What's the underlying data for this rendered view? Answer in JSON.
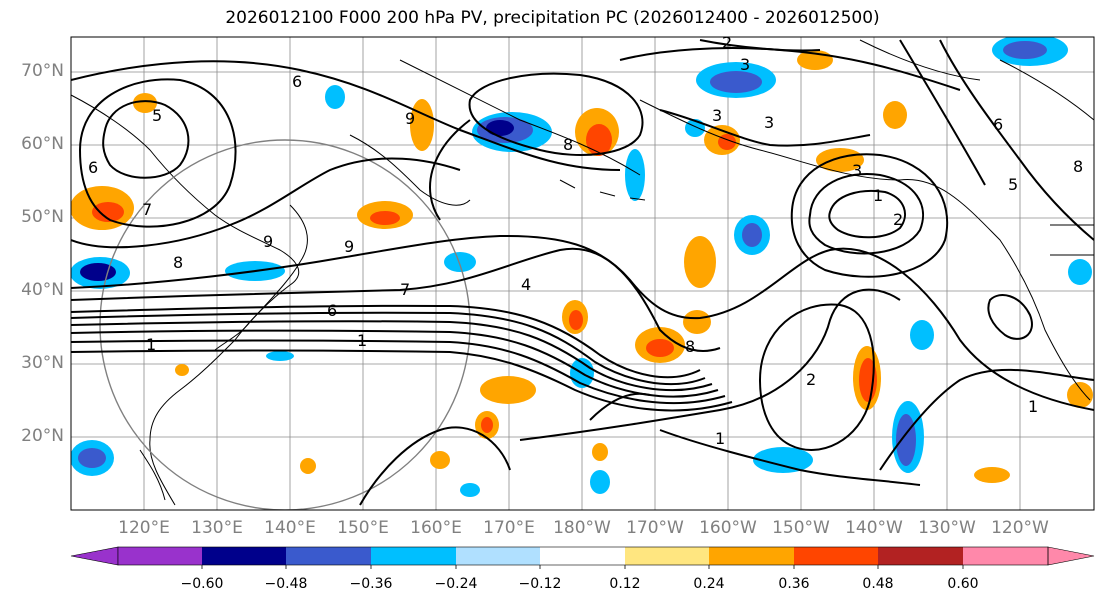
{
  "title": "2026012100 F000 200 hPa PV, precipitation PC (2026012400 - 2026012500)",
  "latitude_labels": [
    "70°N",
    "60°N",
    "50°N",
    "40°N",
    "30°N",
    "20°N"
  ],
  "longitude_labels": [
    "120°E",
    "130°E",
    "140°E",
    "150°E",
    "160°E",
    "170°E",
    "180°W",
    "170°W",
    "160°W",
    "150°W",
    "140°W",
    "130°W",
    "120°W"
  ],
  "contour_labels": [
    "2",
    "3",
    "3",
    "3",
    "3",
    "6",
    "6",
    "6",
    "6",
    "5",
    "5",
    "7",
    "7",
    "8",
    "8",
    "8",
    "9",
    "9",
    "9",
    "1",
    "1",
    "1",
    "1",
    "2",
    "2",
    "4",
    "8",
    "1"
  ],
  "colorbar": {
    "ticks": [
      "−0.60",
      "−0.48",
      "−0.36",
      "−0.24",
      "−0.12",
      "0.12",
      "0.24",
      "0.36",
      "0.48",
      "0.60"
    ],
    "colors": [
      "#9932cc",
      "#00008b",
      "#3a5acd",
      "#00bfff",
      "#b0e0ff",
      "#ffffff",
      "#ffe680",
      "#ffa500",
      "#ff4500",
      "#b22222",
      "#ff88aa"
    ]
  }
}
